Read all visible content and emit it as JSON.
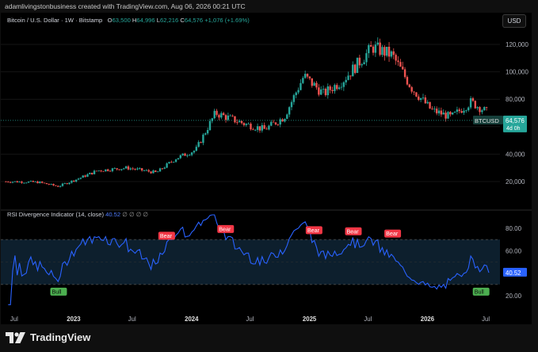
{
  "header": {
    "credit": "adamlivingstonbusiness created with TradingView.com, Aug 06, 2026 00:21 UTC"
  },
  "currency_button": "USD",
  "legend": {
    "symbol": "Bitcoin / U.S. Dollar · 1W · Bitstamp",
    "o_label": "O",
    "o_value": "63,500",
    "h_label": "H",
    "h_value": "64,996",
    "l_label": "L",
    "l_value": "62,216",
    "c_label": "C",
    "c_value": "64,576",
    "change": "+1,076 (+1.69%)"
  },
  "rsi_legend": {
    "name": "RSI Divergence Indicator (14, close)",
    "value": "40.52",
    "placeholders": "∅ ∅ ∅ ∅"
  },
  "price_axis": [
    "120,000",
    "100,000",
    "80,000",
    "60,000",
    "40,000",
    "20,000"
  ],
  "price_tag": {
    "symbol": "BTCUSD",
    "price": "64,576",
    "countdown": "4d 0h"
  },
  "rsi_axis": [
    "80.00",
    "60.00",
    "20.00"
  ],
  "rsi_tag": "40.52",
  "time_axis": [
    "Jul",
    "2023",
    "Jul",
    "2024",
    "Jul",
    "2025",
    "Jul",
    "2026",
    "Jul"
  ],
  "footer": {
    "logo_text": "TradingView"
  },
  "colors": {
    "up": "#26a69a",
    "down": "#ef5350",
    "rsi_line": "#2962ff",
    "bear_label": "#f23645",
    "bull_label": "#4caf50",
    "band_fill": "#0d1f2d"
  },
  "chart_data": [
    {
      "type": "candlestick",
      "title": "Bitcoin / U.S. Dollar · 1W · Bitstamp",
      "y_ticks": [
        20000,
        40000,
        60000,
        80000,
        100000,
        120000
      ],
      "ylim": [
        5000,
        135000
      ],
      "x_ticks": [
        "Jul",
        "2023",
        "Jul",
        "2024",
        "Jul",
        "2025",
        "Jul",
        "2026",
        "Jul"
      ],
      "approx_close_path": [
        [
          "2022-06",
          20000
        ],
        [
          "2022-09",
          19500
        ],
        [
          "2022-11",
          16500
        ],
        [
          "2023-01",
          22000
        ],
        [
          "2023-03",
          28000
        ],
        [
          "2023-06",
          30000
        ],
        [
          "2023-09",
          26500
        ],
        [
          "2023-11",
          37000
        ],
        [
          "2024-01",
          43000
        ],
        [
          "2024-03",
          70000
        ],
        [
          "2024-06",
          62000
        ],
        [
          "2024-08",
          58000
        ],
        [
          "2024-10",
          67000
        ],
        [
          "2024-12",
          97000
        ],
        [
          "2025-02",
          84000
        ],
        [
          "2025-04",
          94000
        ],
        [
          "2025-07",
          118000
        ],
        [
          "2025-09",
          112000
        ],
        [
          "2025-11",
          88000
        ],
        [
          "2026-01",
          72000
        ],
        [
          "2026-03",
          67000
        ],
        [
          "2026-05",
          78000
        ],
        [
          "2026-08",
          64576
        ]
      ],
      "last": {
        "open": 63500,
        "high": 64996,
        "low": 62216,
        "close": 64576
      }
    },
    {
      "type": "line",
      "title": "RSI Divergence Indicator (14, close)",
      "y_ticks": [
        20,
        60,
        80
      ],
      "band": [
        30,
        70
      ],
      "last_value": 40.52,
      "labels": [
        {
          "text": "Bull",
          "date": "2022-11",
          "value": 30
        },
        {
          "text": "Bear",
          "date": "2023-10",
          "value": 67
        },
        {
          "text": "Bear",
          "date": "2024-04",
          "value": 73
        },
        {
          "text": "Bear",
          "date": "2025-01",
          "value": 72
        },
        {
          "text": "Bear",
          "date": "2025-05",
          "value": 71
        },
        {
          "text": "Bear",
          "date": "2025-09",
          "value": 69
        },
        {
          "text": "Bull",
          "date": "2026-06",
          "value": 30
        }
      ]
    }
  ]
}
